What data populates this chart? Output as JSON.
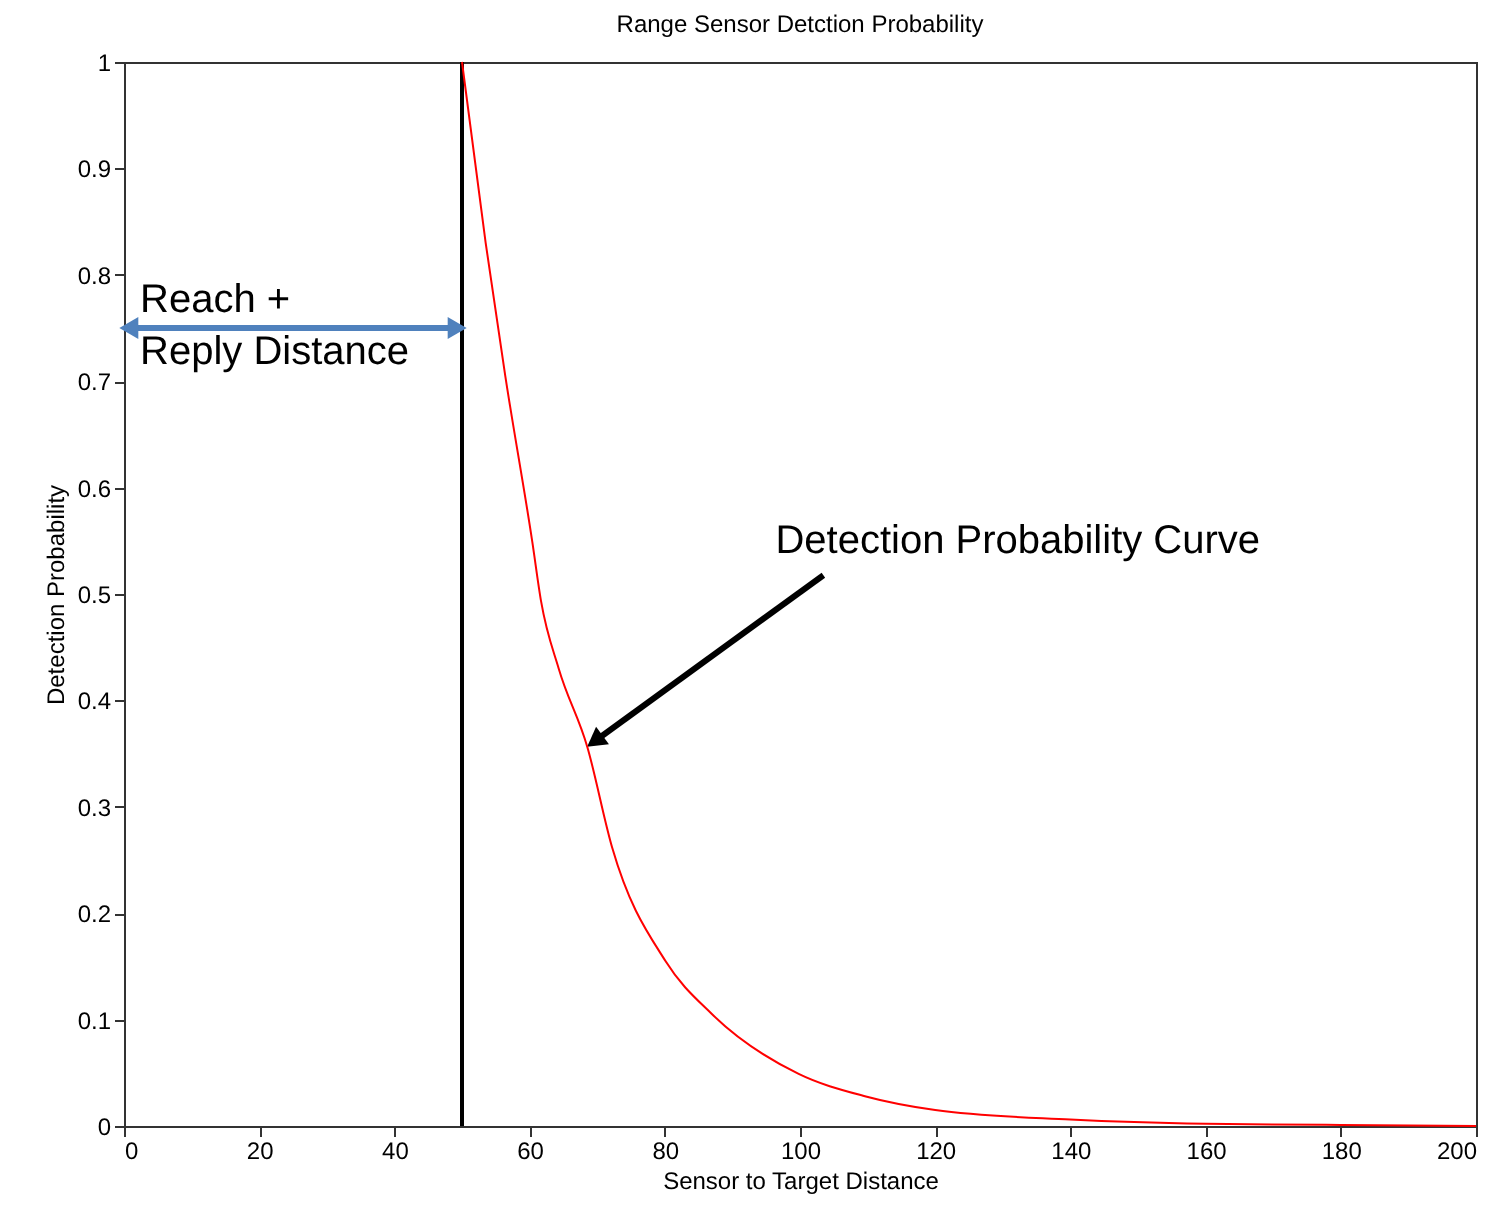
{
  "chart_data": {
    "type": "line",
    "title": "Range Sensor Detction Probability",
    "xlabel": "Sensor to Target Distance",
    "ylabel": "Detection Probability",
    "x": [
      50,
      53.5,
      56.4,
      60.4,
      61.7,
      64.3,
      68.55,
      72.2,
      80.1,
      87,
      99.8,
      109.6,
      120,
      140,
      160,
      180,
      200
    ],
    "series": [
      {
        "color": "#ff0000",
        "values": [
          1,
          0.83,
          0.705,
          0.549,
          0.493,
          0.43,
          0.356,
          0.262,
          0.155,
          0.105,
          0.049,
          0.028,
          0.015,
          0.006,
          0.002,
          0.001,
          0
        ]
      }
    ],
    "xlim": [
      0,
      200
    ],
    "xticks": [
      0,
      20,
      40,
      60,
      80,
      100,
      120,
      140,
      160,
      180,
      200
    ],
    "ylim": [
      0,
      1
    ],
    "yticks": [
      0,
      0.1,
      0.2,
      0.3,
      0.4,
      0.5,
      0.6,
      0.7,
      0.8,
      0.9,
      1
    ],
    "ref_lines": [
      {
        "axis": "x",
        "value": 50,
        "label": null,
        "color": "#000000"
      }
    ],
    "annotations": [
      {
        "text": "Reach +\nReply Distance",
        "x": 50,
        "y": 0.75
      },
      {
        "text": "Detection Probability Curve",
        "x": 68.55,
        "y": 0.356
      }
    ],
    "grid": false
  }
}
